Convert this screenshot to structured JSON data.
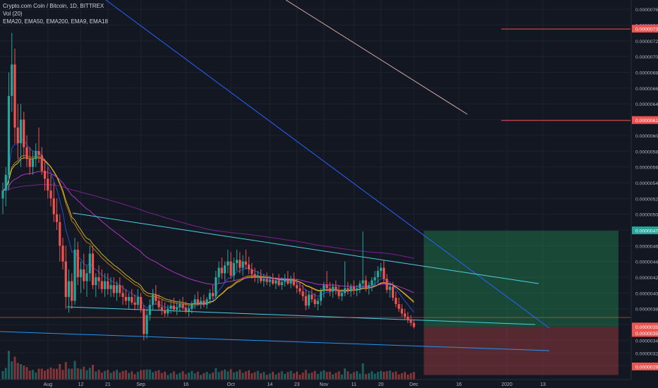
{
  "legend": {
    "symbol_line": "Crypto.com Coin / Bitcoin, 1D, BITTREX",
    "volume_line": "Vol (20)",
    "indicators_line": "EMA20, EMA50, EMA200, EMA9, EMA18"
  },
  "colors": {
    "background": "#131722",
    "grid": "#1e2230",
    "up": "#26a69a",
    "down": "#ef5350",
    "trendline": "#2962ff",
    "channel": "#4dd0e1",
    "price_label_red": "#ef5350",
    "price_label_green": "#26a69a",
    "axis_text": "#b2b5be"
  },
  "chart_data": {
    "type": "candlestick",
    "symbol": "Crypto.com Coin / Bitcoin",
    "interval": "1D",
    "exchange": "BITTREX",
    "indicators": [
      "EMA20",
      "EMA50",
      "EMA200",
      "EMA9",
      "EMA18"
    ],
    "volume_indicator": "Vol (20)",
    "y_axis": {
      "range": [
        2.92e-06,
        7.7e-06
      ],
      "ticks": [
        "0.00000760",
        "0.00000740",
        "0.00000720",
        "0.00000700",
        "0.00000680",
        "0.00000660",
        "0.00000640",
        "0.00000620",
        "0.00000600",
        "0.00000580",
        "0.00000560",
        "0.00000540",
        "0.00000520",
        "0.00000500",
        "0.00000480",
        "0.00000460",
        "0.00000440",
        "0.00000420",
        "0.00000400",
        "0.00000380",
        "0.00000360",
        "0.00000340",
        "0.00000324",
        "0.00000308"
      ],
      "highlighted_labels": [
        {
          "value": "0.00000735",
          "color": "red"
        },
        {
          "value": "0.00000619",
          "color": "red"
        },
        {
          "value": "0.00000479",
          "color": "green"
        },
        {
          "value": "0.00000357",
          "color": "red"
        },
        {
          "value": "0.00000357",
          "color": "red"
        },
        {
          "value": "0.00000296",
          "color": "red"
        }
      ]
    },
    "x_axis": {
      "ticks": [
        "Aug",
        "12",
        "21",
        "Sep",
        "16",
        "Oct",
        "14",
        "23",
        "Nov",
        "11",
        "20",
        "Dec",
        "16",
        "2020",
        "13"
      ]
    },
    "trade_box": {
      "entry": 3.57e-06,
      "target": 4.79e-06,
      "stop": 2.96e-06,
      "start_date": "2019-12-01",
      "end_date": "2020-01-20"
    },
    "candles": [
      {
        "d": "2019-07-17",
        "o": 5.2,
        "h": 5.4,
        "l": 5.0,
        "c": 5.3
      },
      {
        "d": "2019-07-18",
        "o": 5.3,
        "h": 5.6,
        "l": 5.1,
        "c": 5.5
      },
      {
        "d": "2019-07-19",
        "o": 5.5,
        "h": 6.8,
        "l": 5.3,
        "c": 6.5
      },
      {
        "d": "2019-07-20",
        "o": 6.5,
        "h": 7.3,
        "l": 6.3,
        "c": 6.9
      },
      {
        "d": "2019-07-21",
        "o": 6.9,
        "h": 7.1,
        "l": 5.9,
        "c": 6.1
      },
      {
        "d": "2019-07-22",
        "o": 6.1,
        "h": 6.4,
        "l": 5.7,
        "c": 5.9
      },
      {
        "d": "2019-07-23",
        "o": 5.9,
        "h": 6.4,
        "l": 5.6,
        "c": 6.2
      },
      {
        "d": "2019-07-24",
        "o": 6.2,
        "h": 6.3,
        "l": 5.7,
        "c": 5.85
      },
      {
        "d": "2019-07-25",
        "o": 5.85,
        "h": 6.0,
        "l": 5.6,
        "c": 5.7
      },
      {
        "d": "2019-07-26",
        "o": 5.7,
        "h": 5.85,
        "l": 5.5,
        "c": 5.6
      },
      {
        "d": "2019-07-27",
        "o": 5.6,
        "h": 5.8,
        "l": 5.5,
        "c": 5.7
      },
      {
        "d": "2019-07-28",
        "o": 5.7,
        "h": 5.9,
        "l": 5.6,
        "c": 5.8
      },
      {
        "d": "2019-07-29",
        "o": 5.8,
        "h": 6.1,
        "l": 5.65,
        "c": 5.75
      },
      {
        "d": "2019-07-30",
        "o": 5.75,
        "h": 5.85,
        "l": 5.5,
        "c": 5.55
      },
      {
        "d": "2019-07-31",
        "o": 5.55,
        "h": 5.7,
        "l": 5.3,
        "c": 5.45
      },
      {
        "d": "2019-08-01",
        "o": 5.45,
        "h": 5.6,
        "l": 5.2,
        "c": 5.3
      },
      {
        "d": "2019-08-02",
        "o": 5.3,
        "h": 5.5,
        "l": 5.1,
        "c": 5.2
      },
      {
        "d": "2019-08-03",
        "o": 5.2,
        "h": 5.4,
        "l": 4.9,
        "c": 5.0
      },
      {
        "d": "2019-08-04",
        "o": 5.0,
        "h": 5.2,
        "l": 4.8,
        "c": 4.9
      },
      {
        "d": "2019-08-05",
        "o": 4.9,
        "h": 5.0,
        "l": 4.4,
        "c": 4.6
      },
      {
        "d": "2019-08-06",
        "o": 4.6,
        "h": 4.7,
        "l": 4.3,
        "c": 4.4
      },
      {
        "d": "2019-08-07",
        "o": 4.4,
        "h": 4.6,
        "l": 3.8,
        "c": 3.95
      },
      {
        "d": "2019-08-08",
        "o": 3.95,
        "h": 4.3,
        "l": 3.75,
        "c": 4.15
      },
      {
        "d": "2019-08-09",
        "o": 4.15,
        "h": 4.25,
        "l": 3.8,
        "c": 3.9
      },
      {
        "d": "2019-08-10",
        "o": 3.9,
        "h": 4.7,
        "l": 3.85,
        "c": 4.55
      },
      {
        "d": "2019-08-11",
        "o": 4.55,
        "h": 4.65,
        "l": 4.1,
        "c": 4.2
      },
      {
        "d": "2019-08-12",
        "o": 4.2,
        "h": 4.4,
        "l": 4.0,
        "c": 4.3
      },
      {
        "d": "2019-08-13",
        "o": 4.3,
        "h": 4.5,
        "l": 4.05,
        "c": 4.15
      },
      {
        "d": "2019-08-14",
        "o": 4.15,
        "h": 4.35,
        "l": 3.95,
        "c": 4.25
      },
      {
        "d": "2019-08-15",
        "o": 4.25,
        "h": 4.6,
        "l": 4.15,
        "c": 4.5
      },
      {
        "d": "2019-08-16",
        "o": 4.5,
        "h": 4.6,
        "l": 4.05,
        "c": 4.1
      },
      {
        "d": "2019-08-17",
        "o": 4.1,
        "h": 4.25,
        "l": 3.95,
        "c": 4.2
      },
      {
        "d": "2019-08-18",
        "o": 4.2,
        "h": 4.35,
        "l": 4.05,
        "c": 4.15
      },
      {
        "d": "2019-08-19",
        "o": 4.15,
        "h": 4.3,
        "l": 4.0,
        "c": 4.05
      },
      {
        "d": "2019-08-20",
        "o": 4.05,
        "h": 4.25,
        "l": 3.95,
        "c": 4.15
      },
      {
        "d": "2019-08-21",
        "o": 4.15,
        "h": 4.25,
        "l": 3.98,
        "c": 4.05
      },
      {
        "d": "2019-08-22",
        "o": 4.05,
        "h": 4.2,
        "l": 3.95,
        "c": 4.1
      },
      {
        "d": "2019-08-23",
        "o": 4.1,
        "h": 4.2,
        "l": 3.95,
        "c": 4.0
      },
      {
        "d": "2019-08-24",
        "o": 4.0,
        "h": 4.15,
        "l": 3.9,
        "c": 4.1
      },
      {
        "d": "2019-08-25",
        "o": 4.1,
        "h": 4.2,
        "l": 3.95,
        "c": 4.0
      },
      {
        "d": "2019-08-26",
        "o": 4.0,
        "h": 4.1,
        "l": 3.85,
        "c": 3.95
      },
      {
        "d": "2019-08-27",
        "o": 3.95,
        "h": 4.05,
        "l": 3.85,
        "c": 3.9
      },
      {
        "d": "2019-08-28",
        "o": 3.9,
        "h": 4.0,
        "l": 3.8,
        "c": 3.95
      },
      {
        "d": "2019-08-29",
        "o": 3.95,
        "h": 4.05,
        "l": 3.85,
        "c": 3.88
      },
      {
        "d": "2019-08-30",
        "o": 3.88,
        "h": 3.98,
        "l": 3.78,
        "c": 3.85
      },
      {
        "d": "2019-08-31",
        "o": 3.85,
        "h": 4.05,
        "l": 3.8,
        "c": 3.95
      },
      {
        "d": "2019-09-01",
        "o": 3.95,
        "h": 4.0,
        "l": 3.75,
        "c": 3.8
      },
      {
        "d": "2019-09-02",
        "o": 3.8,
        "h": 3.85,
        "l": 3.4,
        "c": 3.48
      },
      {
        "d": "2019-09-03",
        "o": 3.48,
        "h": 3.8,
        "l": 3.42,
        "c": 3.72
      },
      {
        "d": "2019-09-04",
        "o": 3.72,
        "h": 3.92,
        "l": 3.65,
        "c": 3.85
      },
      {
        "d": "2019-09-05",
        "o": 3.85,
        "h": 4.05,
        "l": 3.78,
        "c": 3.98
      },
      {
        "d": "2019-09-06",
        "o": 3.98,
        "h": 4.1,
        "l": 3.85,
        "c": 3.9
      },
      {
        "d": "2019-09-07",
        "o": 3.9,
        "h": 3.98,
        "l": 3.78,
        "c": 3.82
      },
      {
        "d": "2019-09-08",
        "o": 3.82,
        "h": 3.92,
        "l": 3.72,
        "c": 3.78
      },
      {
        "d": "2019-09-09",
        "o": 3.78,
        "h": 3.88,
        "l": 3.7,
        "c": 3.74
      },
      {
        "d": "2019-09-10",
        "o": 3.74,
        "h": 3.85,
        "l": 3.7,
        "c": 3.8
      },
      {
        "d": "2019-09-11",
        "o": 3.8,
        "h": 3.9,
        "l": 3.74,
        "c": 3.84
      },
      {
        "d": "2019-09-12",
        "o": 3.84,
        "h": 3.94,
        "l": 3.76,
        "c": 3.79
      },
      {
        "d": "2019-09-13",
        "o": 3.79,
        "h": 3.88,
        "l": 3.72,
        "c": 3.82
      },
      {
        "d": "2019-09-14",
        "o": 3.82,
        "h": 3.92,
        "l": 3.76,
        "c": 3.86
      },
      {
        "d": "2019-09-15",
        "o": 3.86,
        "h": 3.95,
        "l": 3.78,
        "c": 3.81
      },
      {
        "d": "2019-09-16",
        "o": 3.81,
        "h": 3.89,
        "l": 3.74,
        "c": 3.77
      },
      {
        "d": "2019-09-17",
        "o": 3.77,
        "h": 3.85,
        "l": 3.7,
        "c": 3.8
      },
      {
        "d": "2019-09-18",
        "o": 3.8,
        "h": 3.9,
        "l": 3.74,
        "c": 3.86
      },
      {
        "d": "2019-09-19",
        "o": 3.86,
        "h": 3.98,
        "l": 3.8,
        "c": 3.92
      },
      {
        "d": "2019-09-20",
        "o": 3.92,
        "h": 4.02,
        "l": 3.84,
        "c": 3.87
      },
      {
        "d": "2019-09-21",
        "o": 3.87,
        "h": 3.95,
        "l": 3.8,
        "c": 3.9
      },
      {
        "d": "2019-09-22",
        "o": 3.9,
        "h": 3.98,
        "l": 3.82,
        "c": 3.85
      },
      {
        "d": "2019-09-23",
        "o": 3.85,
        "h": 3.95,
        "l": 3.8,
        "c": 3.92
      },
      {
        "d": "2019-09-24",
        "o": 3.92,
        "h": 4.05,
        "l": 3.86,
        "c": 4.0
      },
      {
        "d": "2019-09-25",
        "o": 4.0,
        "h": 4.1,
        "l": 3.92,
        "c": 3.96
      },
      {
        "d": "2019-09-26",
        "o": 3.96,
        "h": 4.28,
        "l": 3.92,
        "c": 4.2
      },
      {
        "d": "2019-09-27",
        "o": 4.2,
        "h": 4.4,
        "l": 4.12,
        "c": 4.32
      },
      {
        "d": "2019-09-28",
        "o": 4.32,
        "h": 4.45,
        "l": 4.18,
        "c": 4.25
      },
      {
        "d": "2019-09-29",
        "o": 4.25,
        "h": 4.4,
        "l": 4.15,
        "c": 4.35
      },
      {
        "d": "2019-09-30",
        "o": 4.35,
        "h": 4.55,
        "l": 4.25,
        "c": 4.4
      },
      {
        "d": "2019-10-01",
        "o": 4.4,
        "h": 4.52,
        "l": 4.18,
        "c": 4.22
      },
      {
        "d": "2019-10-02",
        "o": 4.22,
        "h": 4.45,
        "l": 4.15,
        "c": 4.38
      },
      {
        "d": "2019-10-03",
        "o": 4.38,
        "h": 4.55,
        "l": 4.28,
        "c": 4.42
      },
      {
        "d": "2019-10-04",
        "o": 4.42,
        "h": 4.52,
        "l": 4.25,
        "c": 4.32
      },
      {
        "d": "2019-10-05",
        "o": 4.32,
        "h": 4.48,
        "l": 4.22,
        "c": 4.4
      },
      {
        "d": "2019-10-06",
        "o": 4.4,
        "h": 4.55,
        "l": 4.3,
        "c": 4.36
      },
      {
        "d": "2019-10-07",
        "o": 4.36,
        "h": 4.46,
        "l": 4.24,
        "c": 4.3
      },
      {
        "d": "2019-10-08",
        "o": 4.3,
        "h": 4.38,
        "l": 4.18,
        "c": 4.24
      },
      {
        "d": "2019-10-09",
        "o": 4.24,
        "h": 4.32,
        "l": 4.14,
        "c": 4.2
      },
      {
        "d": "2019-10-10",
        "o": 4.2,
        "h": 4.28,
        "l": 4.12,
        "c": 4.22
      },
      {
        "d": "2019-10-11",
        "o": 4.22,
        "h": 4.3,
        "l": 4.12,
        "c": 4.15
      },
      {
        "d": "2019-10-12",
        "o": 4.15,
        "h": 4.24,
        "l": 4.08,
        "c": 4.18
      },
      {
        "d": "2019-10-13",
        "o": 4.18,
        "h": 4.26,
        "l": 4.1,
        "c": 4.14
      },
      {
        "d": "2019-10-14",
        "o": 4.14,
        "h": 4.22,
        "l": 4.08,
        "c": 4.17
      },
      {
        "d": "2019-10-15",
        "o": 4.17,
        "h": 4.25,
        "l": 4.1,
        "c": 4.12
      },
      {
        "d": "2019-10-16",
        "o": 4.12,
        "h": 4.2,
        "l": 4.05,
        "c": 4.16
      },
      {
        "d": "2019-10-17",
        "o": 4.16,
        "h": 4.24,
        "l": 4.08,
        "c": 4.1
      },
      {
        "d": "2019-10-18",
        "o": 4.1,
        "h": 4.2,
        "l": 4.04,
        "c": 4.14
      },
      {
        "d": "2019-10-19",
        "o": 4.14,
        "h": 4.24,
        "l": 4.08,
        "c": 4.18
      },
      {
        "d": "2019-10-20",
        "o": 4.18,
        "h": 4.28,
        "l": 4.1,
        "c": 4.12
      },
      {
        "d": "2019-10-21",
        "o": 4.12,
        "h": 4.22,
        "l": 4.06,
        "c": 4.18
      },
      {
        "d": "2019-10-22",
        "o": 4.18,
        "h": 4.26,
        "l": 4.08,
        "c": 4.1
      },
      {
        "d": "2019-10-23",
        "o": 4.1,
        "h": 4.18,
        "l": 4.0,
        "c": 4.06
      },
      {
        "d": "2019-10-24",
        "o": 4.06,
        "h": 4.14,
        "l": 3.98,
        "c": 4.02
      },
      {
        "d": "2019-10-25",
        "o": 4.02,
        "h": 4.1,
        "l": 3.9,
        "c": 3.96
      },
      {
        "d": "2019-10-26",
        "o": 3.96,
        "h": 4.05,
        "l": 3.78,
        "c": 3.84
      },
      {
        "d": "2019-10-27",
        "o": 3.84,
        "h": 4.02,
        "l": 3.8,
        "c": 3.98
      },
      {
        "d": "2019-10-28",
        "o": 3.98,
        "h": 4.06,
        "l": 3.88,
        "c": 3.92
      },
      {
        "d": "2019-10-29",
        "o": 3.92,
        "h": 4.0,
        "l": 3.82,
        "c": 3.86
      },
      {
        "d": "2019-10-30",
        "o": 3.86,
        "h": 3.94,
        "l": 3.78,
        "c": 3.9
      },
      {
        "d": "2019-10-31",
        "o": 3.9,
        "h": 4.06,
        "l": 3.84,
        "c": 4.02
      },
      {
        "d": "2019-11-01",
        "o": 4.02,
        "h": 4.14,
        "l": 3.94,
        "c": 4.1
      },
      {
        "d": "2019-11-02",
        "o": 4.1,
        "h": 4.28,
        "l": 4.02,
        "c": 4.06
      },
      {
        "d": "2019-11-03",
        "o": 4.06,
        "h": 4.14,
        "l": 3.96,
        "c": 4.02
      },
      {
        "d": "2019-11-04",
        "o": 4.02,
        "h": 4.12,
        "l": 3.94,
        "c": 4.08
      },
      {
        "d": "2019-11-05",
        "o": 4.08,
        "h": 4.16,
        "l": 3.98,
        "c": 4.04
      },
      {
        "d": "2019-11-06",
        "o": 4.04,
        "h": 4.1,
        "l": 3.92,
        "c": 3.96
      },
      {
        "d": "2019-11-07",
        "o": 3.96,
        "h": 4.05,
        "l": 3.9,
        "c": 4.0
      },
      {
        "d": "2019-11-08",
        "o": 4.0,
        "h": 4.4,
        "l": 3.96,
        "c": 4.06
      },
      {
        "d": "2019-11-09",
        "o": 4.06,
        "h": 4.14,
        "l": 3.98,
        "c": 4.02
      },
      {
        "d": "2019-11-10",
        "o": 4.02,
        "h": 4.12,
        "l": 3.95,
        "c": 4.08
      },
      {
        "d": "2019-11-11",
        "o": 4.08,
        "h": 4.16,
        "l": 3.98,
        "c": 4.03
      },
      {
        "d": "2019-11-12",
        "o": 4.03,
        "h": 4.1,
        "l": 3.96,
        "c": 4.06
      },
      {
        "d": "2019-11-13",
        "o": 4.06,
        "h": 4.16,
        "l": 4.0,
        "c": 4.12
      },
      {
        "d": "2019-11-14",
        "o": 4.12,
        "h": 4.78,
        "l": 4.06,
        "c": 4.16
      },
      {
        "d": "2019-11-15",
        "o": 4.16,
        "h": 4.22,
        "l": 4.02,
        "c": 4.06
      },
      {
        "d": "2019-11-16",
        "o": 4.06,
        "h": 4.14,
        "l": 3.98,
        "c": 4.1
      },
      {
        "d": "2019-11-17",
        "o": 4.1,
        "h": 4.2,
        "l": 4.02,
        "c": 4.16
      },
      {
        "d": "2019-11-18",
        "o": 4.16,
        "h": 4.28,
        "l": 4.08,
        "c": 4.2
      },
      {
        "d": "2019-11-19",
        "o": 4.2,
        "h": 4.34,
        "l": 4.12,
        "c": 4.28
      },
      {
        "d": "2019-11-20",
        "o": 4.28,
        "h": 4.38,
        "l": 4.2,
        "c": 4.32
      },
      {
        "d": "2019-11-21",
        "o": 4.32,
        "h": 4.42,
        "l": 4.12,
        "c": 4.18
      },
      {
        "d": "2019-11-22",
        "o": 4.18,
        "h": 4.24,
        "l": 4.0,
        "c": 4.04
      },
      {
        "d": "2019-11-23",
        "o": 4.04,
        "h": 4.12,
        "l": 3.94,
        "c": 4.08
      },
      {
        "d": "2019-11-24",
        "o": 4.08,
        "h": 4.14,
        "l": 3.9,
        "c": 3.94
      },
      {
        "d": "2019-11-25",
        "o": 3.94,
        "h": 4.02,
        "l": 3.82,
        "c": 3.86
      },
      {
        "d": "2019-11-26",
        "o": 3.86,
        "h": 3.94,
        "l": 3.76,
        "c": 3.8
      },
      {
        "d": "2019-11-27",
        "o": 3.8,
        "h": 3.86,
        "l": 3.7,
        "c": 3.74
      },
      {
        "d": "2019-11-28",
        "o": 3.74,
        "h": 3.8,
        "l": 3.66,
        "c": 3.7
      },
      {
        "d": "2019-11-29",
        "o": 3.7,
        "h": 3.76,
        "l": 3.62,
        "c": 3.66
      },
      {
        "d": "2019-11-30",
        "o": 3.66,
        "h": 3.72,
        "l": 3.58,
        "c": 3.62
      },
      {
        "d": "2019-12-01",
        "o": 3.62,
        "h": 3.66,
        "l": 3.55,
        "c": 3.57
      }
    ],
    "volume_scale_note": "relative"
  }
}
